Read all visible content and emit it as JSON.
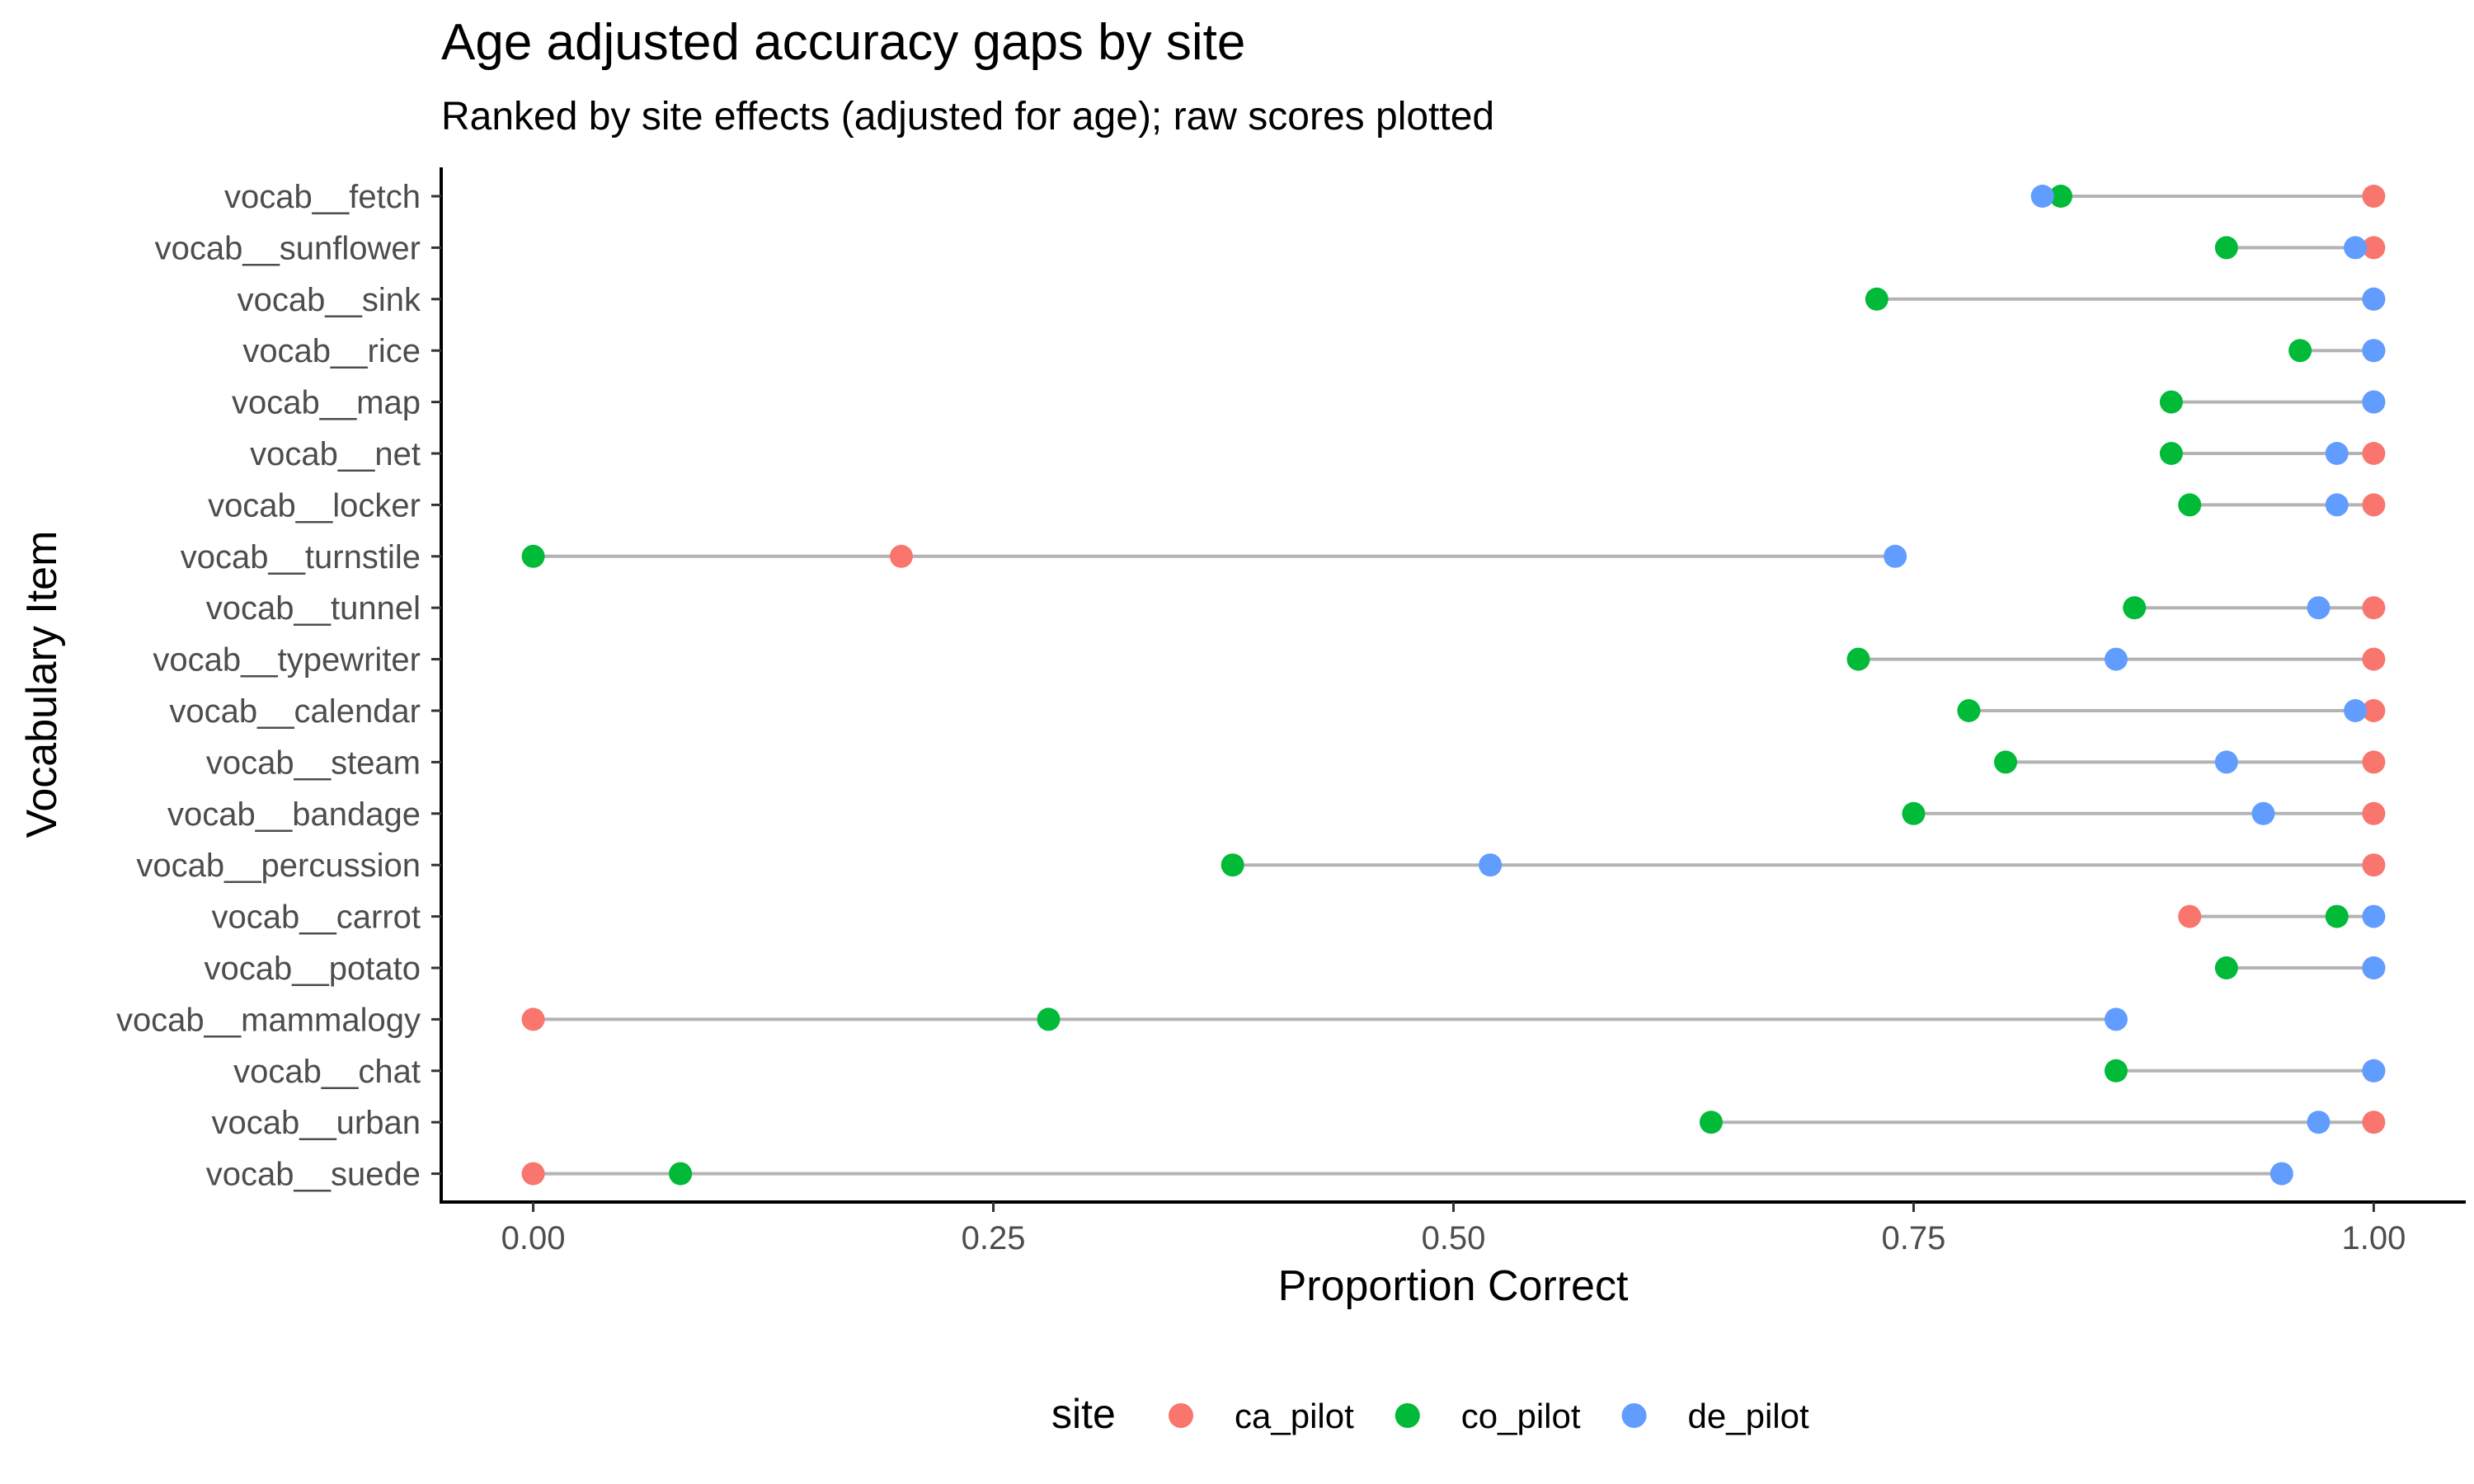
{
  "chart_data": {
    "type": "scatter",
    "subtype": "dumbbell",
    "title": "Age adjusted accuracy gaps by site",
    "subtitle": "Ranked by site effects (adjusted for age); raw scores plotted",
    "xlabel": "Proportion Correct",
    "ylabel": "Vocabulary Item",
    "xlim": [
      -0.05,
      1.05
    ],
    "x_ticks": [
      0,
      0.25,
      0.5,
      0.75,
      1
    ],
    "x_tick_labels": [
      "0.00",
      "0.25",
      "0.50",
      "0.75",
      "1.00"
    ],
    "grid": false,
    "legend": {
      "title": "site",
      "position": "bottom"
    },
    "colors": {
      "ca_pilot": "#F8766D",
      "co_pilot": "#00BA38",
      "de_pilot": "#619CFF",
      "segment": "#b3b3b3"
    },
    "categories": [
      "vocab__fetch",
      "vocab__sunflower",
      "vocab__sink",
      "vocab__rice",
      "vocab__map",
      "vocab__net",
      "vocab__locker",
      "vocab__turnstile",
      "vocab__tunnel",
      "vocab__typewriter",
      "vocab__calendar",
      "vocab__steam",
      "vocab__bandage",
      "vocab__percussion",
      "vocab__carrot",
      "vocab__potato",
      "vocab__mammalogy",
      "vocab__chat",
      "vocab__urban",
      "vocab__suede"
    ],
    "series": [
      {
        "name": "ca_pilot",
        "values": [
          1.0,
          1.0,
          1.0,
          1.0,
          1.0,
          1.0,
          1.0,
          0.2,
          1.0,
          1.0,
          1.0,
          1.0,
          1.0,
          1.0,
          0.9,
          1.0,
          0.0,
          1.0,
          1.0,
          0.0
        ]
      },
      {
        "name": "co_pilot",
        "values": [
          0.83,
          0.92,
          0.73,
          0.96,
          0.89,
          0.89,
          0.9,
          0.0,
          0.87,
          0.72,
          0.78,
          0.8,
          0.75,
          0.38,
          0.98,
          0.92,
          0.28,
          0.86,
          0.64,
          0.08
        ]
      },
      {
        "name": "de_pilot",
        "values": [
          0.82,
          0.99,
          1.0,
          1.0,
          1.0,
          0.98,
          0.98,
          0.74,
          0.97,
          0.86,
          0.99,
          0.92,
          0.94,
          0.52,
          1.0,
          1.0,
          0.86,
          1.0,
          0.97,
          0.95
        ]
      }
    ]
  }
}
